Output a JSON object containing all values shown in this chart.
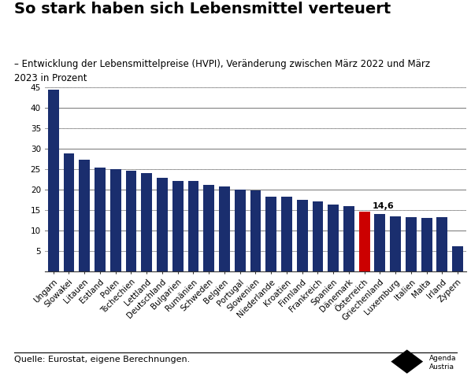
{
  "title": "So stark haben sich Lebensmittel verteuert",
  "subtitle": "– Entwicklung der Lebensmittelpreise (HVPI), Veränderung zwischen März 2022 und März\n2023 in Prozent",
  "source": "Quelle: Eurostat, eigene Berechnungen.",
  "categories": [
    "Ungarn",
    "Slowakei",
    "Litauen",
    "Estland",
    "Polen",
    "Tschechien",
    "Lettland",
    "Deutschland",
    "Bulgarien",
    "Rumänien",
    "Schweden",
    "Belgien",
    "Portugal",
    "Slowenien",
    "Niederlande",
    "Kroatien",
    "Finnland",
    "Frankreich",
    "Spanien",
    "Dänemark",
    "Österreich",
    "Griechenland",
    "Luxemburg",
    "Italien",
    "Malta",
    "Irland",
    "Zypern"
  ],
  "values": [
    44.5,
    29.0,
    27.4,
    25.4,
    25.0,
    24.6,
    24.2,
    23.0,
    22.2,
    22.2,
    21.2,
    20.8,
    20.0,
    19.9,
    18.4,
    18.3,
    17.6,
    17.1,
    16.4,
    16.1,
    14.6,
    14.1,
    13.5,
    13.3,
    13.2,
    13.3,
    6.2
  ],
  "bar_color_default": "#1a2e6e",
  "bar_color_highlight": "#cc0000",
  "highlight_index": 20,
  "highlight_label": "14,6",
  "ylim": [
    0,
    46
  ],
  "yticks": [
    5,
    10,
    15,
    20,
    25,
    30,
    35,
    40,
    45
  ],
  "background_color": "#ffffff",
  "grid_color_solid": "#888888",
  "grid_color_dashed": "#bbbbbb",
  "title_fontsize": 14,
  "subtitle_fontsize": 8.5,
  "tick_fontsize": 7.5,
  "source_fontsize": 8
}
